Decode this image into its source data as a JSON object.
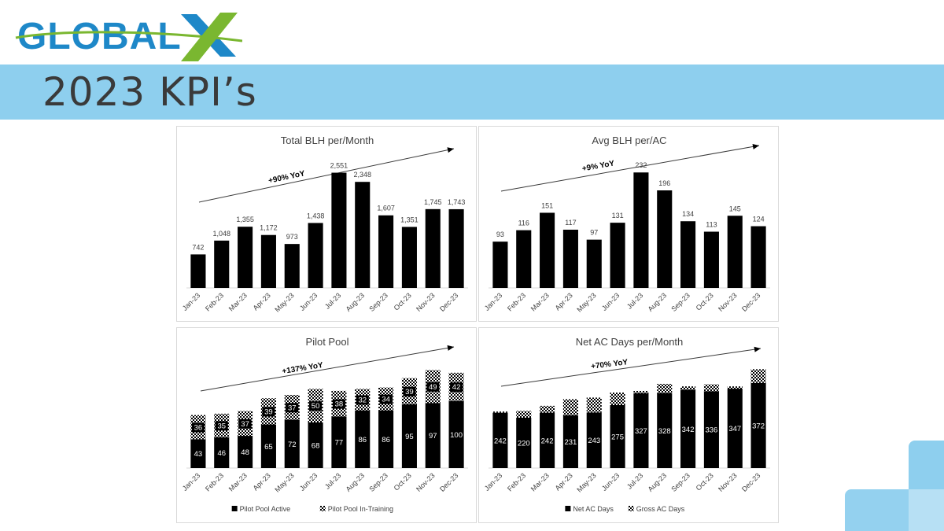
{
  "slide": {
    "logo_text": "GLOBALX",
    "title": "2023 KPI’s"
  },
  "colors": {
    "banner": "#8ecfee",
    "bar": "#000000",
    "logo_blue": "#1e88c8",
    "logo_green": "#7ab730"
  },
  "chart_data": [
    {
      "id": "blh",
      "type": "bar",
      "title": "Total BLH per/Month",
      "annotation": "+90% YoY",
      "categories": [
        "Jan-23",
        "Feb-23",
        "Mar-23",
        "Apr-23",
        "May-23",
        "Jun-23",
        "Jul-23",
        "Aug-23",
        "Sep-23",
        "Oct-23",
        "Nov-23",
        "Dec-23"
      ],
      "values": [
        742,
        1048,
        1355,
        1172,
        973,
        1438,
        2551,
        2348,
        1607,
        1351,
        1745,
        1743
      ],
      "labels": [
        "742",
        "1,048",
        "1,355",
        "1,172",
        "973",
        "1,438",
        "2,551",
        "2,348",
        "1,607",
        "1,351",
        "1,745",
        "1,743"
      ],
      "ylim": [
        0,
        2700
      ]
    },
    {
      "id": "avg",
      "type": "bar",
      "title": "Avg BLH per/AC",
      "annotation": "+9% YoY",
      "categories": [
        "Jan-23",
        "Feb-23",
        "Mar-23",
        "Apr-23",
        "May-23",
        "Jun-23",
        "Jul-23",
        "Aug-23",
        "Sep-23",
        "Oct-23",
        "Nov-23",
        "Dec-23"
      ],
      "values": [
        93,
        116,
        151,
        117,
        97,
        131,
        232,
        196,
        134,
        113,
        145,
        124
      ],
      "labels": [
        "93",
        "116",
        "151",
        "117",
        "97",
        "131",
        "232",
        "196",
        "134",
        "113",
        "145",
        "124"
      ],
      "ylim": [
        0,
        245
      ]
    },
    {
      "id": "pilot",
      "type": "bar",
      "stacked": true,
      "title": "Pilot Pool",
      "annotation": "+137% YoY",
      "categories": [
        "Jan-23",
        "Feb-23",
        "Mar-23",
        "Apr-23",
        "May-23",
        "Jun-23",
        "Jul-23",
        "Aug-23",
        "Sep-23",
        "Oct-23",
        "Nov-23",
        "Dec-23"
      ],
      "series": [
        {
          "name": "Pilot Pool Active",
          "values": [
            43,
            46,
            48,
            65,
            72,
            68,
            77,
            86,
            86,
            95,
            97,
            100
          ],
          "show_labels": true
        },
        {
          "name": "Pilot Pool In-Training",
          "values": [
            36,
            35,
            37,
            39,
            37,
            50,
            38,
            32,
            34,
            39,
            49,
            42
          ],
          "show_labels": true
        }
      ],
      "ylim": [
        0,
        150
      ]
    },
    {
      "id": "acdays",
      "type": "bar",
      "stacked": true,
      "title": "Net AC Days per/Month",
      "annotation": "+70% YoY",
      "categories": [
        "Jan-23",
        "Feb-23",
        "Mar-23",
        "Apr-23",
        "May-23",
        "Jun-23",
        "Jul-23",
        "Aug-23",
        "Sep-23",
        "Oct-23",
        "Nov-23",
        "Dec-23"
      ],
      "series": [
        {
          "name": "Net AC Days",
          "values": [
            242,
            220,
            242,
            231,
            243,
            275,
            327,
            328,
            342,
            336,
            347,
            372
          ],
          "show_labels": true
        },
        {
          "name": "Gross AC Days",
          "values": [
            5,
            30,
            30,
            70,
            65,
            55,
            10,
            40,
            15,
            30,
            10,
            60
          ],
          "show_labels": false
        }
      ],
      "ylim": [
        0,
        440
      ]
    }
  ]
}
